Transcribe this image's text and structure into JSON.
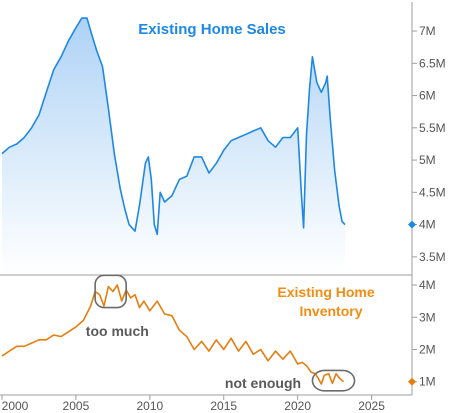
{
  "chart_data": [
    {
      "type": "area",
      "title": "Existing Home Sales",
      "units": "M",
      "ylim": [
        3.25,
        7.45
      ],
      "yticks": [
        {
          "v": 3.5,
          "label": "3.5M"
        },
        {
          "v": 4,
          "label": "4M"
        },
        {
          "v": 4.5,
          "label": "4.5M"
        },
        {
          "v": 5,
          "label": "5M"
        },
        {
          "v": 5.5,
          "label": "5.5M"
        },
        {
          "v": 6,
          "label": "6M"
        },
        {
          "v": 6.5,
          "label": "6.5M"
        },
        {
          "v": 7,
          "label": "7M"
        }
      ],
      "latest_marker": 4.0,
      "color": "#1e88e5",
      "series": [
        {
          "x": [
            2000,
            2000.5,
            2001,
            2001.5,
            2002,
            2002.5,
            2003,
            2003.5,
            2004,
            2004.5,
            2005,
            2005.4,
            2005.75,
            2006,
            2006.4,
            2006.8,
            2007.2,
            2007.6,
            2008,
            2008.3,
            2008.6,
            2009,
            2009.3,
            2009.7,
            2009.9,
            2010.1,
            2010.3,
            2010.5,
            2010.7,
            2011,
            2011.5,
            2012,
            2012.5,
            2013,
            2013.5,
            2014,
            2014.5,
            2015,
            2015.5,
            2016,
            2016.5,
            2017,
            2017.5,
            2018,
            2018.5,
            2019,
            2019.5,
            2020,
            2020.25,
            2020.4,
            2020.6,
            2020.8,
            2021,
            2021.3,
            2021.6,
            2021.9,
            2022,
            2022.2,
            2022.5,
            2022.8,
            2023,
            2023.2
          ],
          "values": [
            5.1,
            5.2,
            5.25,
            5.35,
            5.5,
            5.7,
            6.05,
            6.4,
            6.6,
            6.85,
            7.05,
            7.2,
            7.2,
            7.0,
            6.7,
            6.45,
            5.8,
            5.1,
            4.55,
            4.25,
            4.0,
            3.9,
            4.3,
            4.95,
            5.05,
            4.7,
            4.0,
            3.85,
            4.5,
            4.35,
            4.45,
            4.7,
            4.75,
            5.05,
            5.05,
            4.8,
            4.95,
            5.15,
            5.3,
            5.35,
            5.4,
            5.45,
            5.5,
            5.3,
            5.2,
            5.35,
            5.35,
            5.5,
            4.5,
            3.95,
            5.4,
            6.1,
            6.6,
            6.2,
            6.05,
            6.2,
            6.3,
            5.65,
            4.85,
            4.3,
            4.05,
            4.0
          ]
        }
      ]
    },
    {
      "type": "line",
      "title": "Existing Home Inventory",
      "units": "M",
      "ylim": [
        0.62,
        4.28
      ],
      "yticks": [
        {
          "v": 1,
          "label": "1M"
        },
        {
          "v": 2,
          "label": "2M"
        },
        {
          "v": 3,
          "label": "3M"
        },
        {
          "v": 4,
          "label": "4M"
        }
      ],
      "latest_marker": 1.0,
      "color": "#e67e0f",
      "series": [
        {
          "x": [
            2000,
            2000.5,
            2001,
            2001.5,
            2002,
            2002.5,
            2003,
            2003.5,
            2004,
            2004.5,
            2005,
            2005.5,
            2006,
            2006.3,
            2006.6,
            2006.9,
            2007.2,
            2007.5,
            2007.8,
            2008.1,
            2008.4,
            2008.7,
            2009,
            2009.3,
            2009.6,
            2010,
            2010.5,
            2011,
            2011.5,
            2012,
            2012.5,
            2013,
            2013.5,
            2014,
            2014.5,
            2015,
            2015.5,
            2016,
            2016.5,
            2017,
            2017.5,
            2018,
            2018.5,
            2019,
            2019.5,
            2020,
            2020.3,
            2020.6,
            2020.9,
            2021.2,
            2021.4,
            2021.6,
            2021.8,
            2022.1,
            2022.35,
            2022.6,
            2022.85,
            2023.1
          ],
          "values": [
            1.8,
            1.95,
            2.1,
            2.1,
            2.2,
            2.3,
            2.3,
            2.45,
            2.4,
            2.55,
            2.7,
            2.9,
            3.35,
            3.8,
            3.7,
            3.35,
            3.95,
            3.8,
            4.0,
            3.5,
            3.85,
            3.6,
            3.7,
            3.3,
            3.5,
            3.2,
            3.5,
            3.1,
            3.05,
            2.6,
            2.4,
            2.0,
            2.25,
            1.95,
            2.3,
            2.0,
            2.35,
            1.95,
            2.25,
            1.85,
            2.0,
            1.65,
            1.95,
            1.7,
            1.95,
            1.55,
            1.6,
            1.5,
            1.3,
            1.25,
            1.1,
            0.93,
            1.2,
            1.25,
            0.95,
            1.25,
            1.1,
            1.0
          ]
        }
      ]
    }
  ],
  "x_axis": {
    "xlim": [
      2000,
      2027.6
    ],
    "ticks": [
      {
        "v": 2000,
        "label": "2000"
      },
      {
        "v": 2005,
        "label": "2005"
      },
      {
        "v": 2010,
        "label": "2010"
      },
      {
        "v": 2015,
        "label": "2015"
      },
      {
        "v": 2020,
        "label": "2020"
      },
      {
        "v": 2025,
        "label": "2025"
      }
    ]
  },
  "annotations": [
    {
      "text": "too much",
      "circle_x": [
        2006.3,
        2008.4
      ],
      "circle_y": [
        3.3,
        4.3
      ]
    },
    {
      "text": "not enough",
      "circle_x": [
        2021.0,
        2023.85
      ],
      "circle_y": [
        0.72,
        1.35
      ]
    }
  ]
}
